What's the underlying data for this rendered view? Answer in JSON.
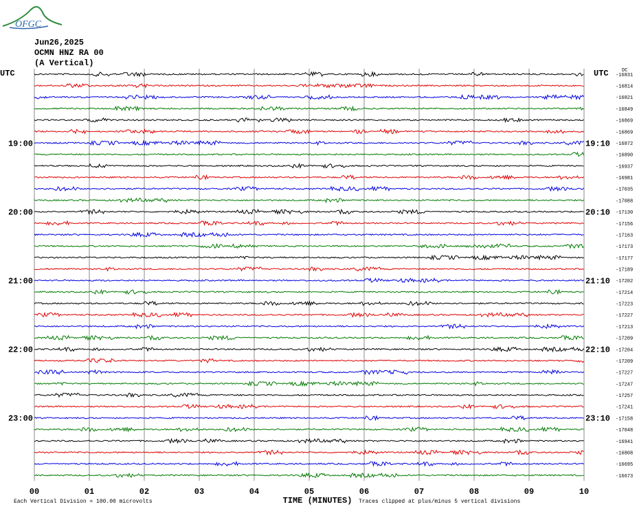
{
  "logo": "OFGC",
  "chart_data": {
    "type": "helicorder",
    "date": "Jun26,2025",
    "station": "OCMN HNZ RA 00",
    "component": "(A Vertical)",
    "left_axis_title": "UTC",
    "right_axis_title": "UTC",
    "dc_label": "DC",
    "row_offsets": [
      -16831,
      -16814,
      -16821,
      -16849,
      -16869,
      -16869,
      -16872,
      -16890,
      -16937,
      -16981,
      -17035,
      -17088,
      -17130,
      -17156,
      -17163,
      -17173,
      -17177,
      -17189,
      -17202,
      -17214,
      -17223,
      -17227,
      -17213,
      -17209,
      -17204,
      -17209,
      -17227,
      -17247,
      -17257,
      -17241,
      -17158,
      -17048,
      -16941,
      -16808,
      -16695,
      -16673
    ],
    "left_labels": [
      null,
      null,
      null,
      null,
      null,
      null,
      "19:00",
      null,
      null,
      null,
      null,
      null,
      "20:00",
      null,
      null,
      null,
      null,
      null,
      "21:00",
      null,
      null,
      null,
      null,
      null,
      "22:00",
      null,
      null,
      null,
      null,
      null,
      "23:00",
      null,
      null,
      null,
      null,
      null
    ],
    "right_labels": [
      null,
      null,
      null,
      null,
      null,
      null,
      "19:10",
      null,
      null,
      null,
      null,
      null,
      "20:10",
      null,
      null,
      null,
      null,
      null,
      "21:10",
      null,
      null,
      null,
      null,
      null,
      "22:10",
      null,
      null,
      null,
      null,
      null,
      "23:10",
      null,
      null,
      null,
      null,
      null
    ],
    "colors": [
      "#000000",
      "#e00000",
      "#0000e0",
      "#007a00"
    ],
    "xlim": [
      0,
      10
    ],
    "xticks": [
      {
        "value": 0,
        "label": "00"
      },
      {
        "value": 1,
        "label": "01"
      },
      {
        "value": 2,
        "label": "02"
      },
      {
        "value": 3,
        "label": "03"
      },
      {
        "value": 4,
        "label": "04"
      },
      {
        "value": 5,
        "label": "05"
      },
      {
        "value": 6,
        "label": "06"
      },
      {
        "value": 7,
        "label": "07"
      },
      {
        "value": 8,
        "label": "08"
      },
      {
        "value": 9,
        "label": "09"
      },
      {
        "value": 10,
        "label": "10"
      }
    ],
    "xlabel": "TIME (MINUTES)",
    "scale_note": "Each Vertical Division =  100.00 microvolts",
    "clip_note": "Traces clipped at plus/minus 5 vertical divisions",
    "grid": true
  }
}
